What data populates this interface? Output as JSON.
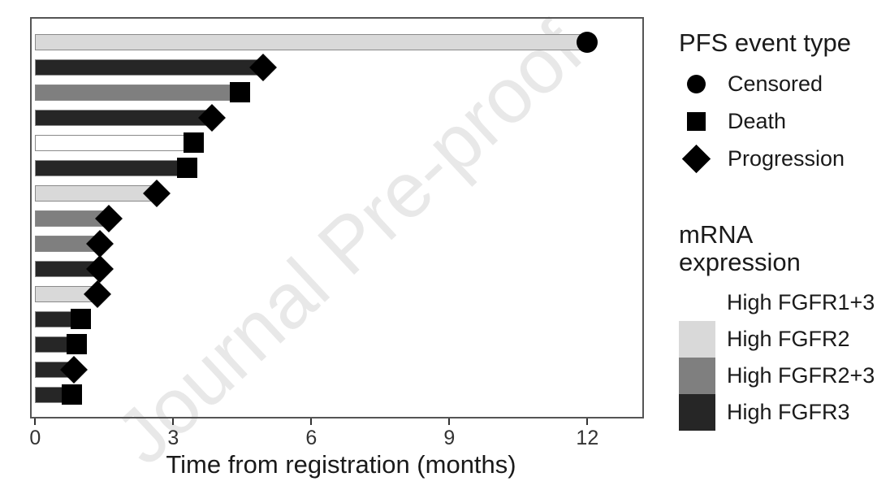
{
  "watermark": {
    "text": "Journal Pre-proof",
    "color": "#e8e8e8"
  },
  "chart_data": {
    "type": "bar",
    "orientation": "horizontal",
    "title": "",
    "xlabel": "Time from registration (months)",
    "ylabel": "",
    "x_ticks": [
      0,
      3,
      6,
      9,
      12
    ],
    "xlim": [
      0,
      13.2
    ],
    "grid": "off",
    "legend_position": "right",
    "event_markers": {
      "Censored": "circle",
      "Death": "square",
      "Progression": "diamond"
    },
    "expression_colors": {
      "High FGFR1+3": "#ffffff",
      "High FGFR2": "#d9d9d9",
      "High FGFR2+3": "#7f7f7f",
      "High FGFR3": "#262626"
    },
    "bars": [
      {
        "time_months": 12.0,
        "event": "Censored",
        "expression": "High FGFR2"
      },
      {
        "time_months": 4.95,
        "event": "Progression",
        "expression": "High FGFR3"
      },
      {
        "time_months": 4.45,
        "event": "Death",
        "expression": "High FGFR2+3"
      },
      {
        "time_months": 3.85,
        "event": "Progression",
        "expression": "High FGFR3"
      },
      {
        "time_months": 3.45,
        "event": "Death",
        "expression": "High FGFR1+3"
      },
      {
        "time_months": 3.3,
        "event": "Death",
        "expression": "High FGFR3"
      },
      {
        "time_months": 2.65,
        "event": "Progression",
        "expression": "High FGFR2"
      },
      {
        "time_months": 1.6,
        "event": "Progression",
        "expression": "High FGFR2+3"
      },
      {
        "time_months": 1.4,
        "event": "Progression",
        "expression": "High FGFR2+3"
      },
      {
        "time_months": 1.4,
        "event": "Progression",
        "expression": "High FGFR3"
      },
      {
        "time_months": 1.35,
        "event": "Progression",
        "expression": "High FGFR2"
      },
      {
        "time_months": 1.0,
        "event": "Death",
        "expression": "High FGFR3"
      },
      {
        "time_months": 0.9,
        "event": "Death",
        "expression": "High FGFR3"
      },
      {
        "time_months": 0.85,
        "event": "Progression",
        "expression": "High FGFR3"
      },
      {
        "time_months": 0.8,
        "event": "Death",
        "expression": "High FGFR3"
      }
    ]
  },
  "legends": {
    "pfs": {
      "title": "PFS event type",
      "items": [
        {
          "label": "Censored",
          "marker": "circle"
        },
        {
          "label": "Death",
          "marker": "square"
        },
        {
          "label": "Progression",
          "marker": "diamond"
        }
      ]
    },
    "mrna": {
      "title": "mRNA expression",
      "items": [
        {
          "label": "High FGFR1+3",
          "color": "#ffffff"
        },
        {
          "label": "High FGFR2",
          "color": "#d9d9d9"
        },
        {
          "label": "High FGFR2+3",
          "color": "#7f7f7f"
        },
        {
          "label": "High FGFR3",
          "color": "#262626"
        }
      ]
    }
  }
}
